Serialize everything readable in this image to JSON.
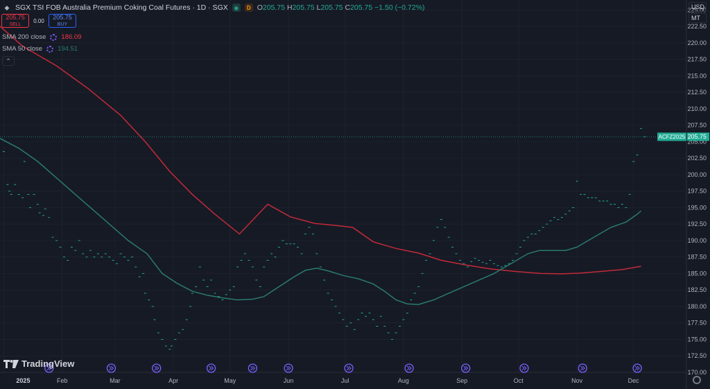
{
  "header": {
    "title": "SGX TSI FOB Australia Premium Coking Coal Futures · 1D · SGX",
    "open_label": "O",
    "open": "205.75",
    "high_label": "H",
    "high": "205.75",
    "low_label": "L",
    "low": "205.75",
    "close_label": "C",
    "close": "205.75",
    "change": "−1.50 (−0.72%)"
  },
  "trade": {
    "sell_price": "205.75",
    "sell_label": "SELL",
    "spread": "0.00",
    "buy_price": "205.75",
    "buy_label": "BUY"
  },
  "indicators": [
    {
      "label": "SMA 200 close",
      "value": "186.09",
      "color": "#f23645"
    },
    {
      "label": "SMA 50 close",
      "value": "194.51",
      "color": "#2b7a6f"
    }
  ],
  "axis": {
    "currency": "USD",
    "unit": "MT",
    "price_tag_symbol": "ACFZ2025",
    "price_tag_value": "205.75"
  },
  "logo": "TradingView",
  "colors": {
    "background": "#161a25",
    "sma200": "#c42a38",
    "sma50": "#2b7a6f",
    "price": "#22ab94",
    "event": "#7b61ff",
    "tag": "#22ab94"
  },
  "chart_data": {
    "type": "line",
    "ylim": [
      170,
      226.5
    ],
    "y_ticks": [
      "170.00",
      "172.50",
      "175.00",
      "177.50",
      "180.00",
      "182.50",
      "185.00",
      "187.50",
      "190.00",
      "192.50",
      "195.00",
      "197.50",
      "200.00",
      "202.50",
      "205.00",
      "207.50",
      "210.00",
      "212.50",
      "215.00",
      "217.50",
      "220.00",
      "222.50",
      "225.00"
    ],
    "x_labels": [
      {
        "text": "2025",
        "day": 0
      },
      {
        "text": "Feb",
        "day": 31
      },
      {
        "text": "Mar",
        "day": 59
      },
      {
        "text": "Apr",
        "day": 90
      },
      {
        "text": "May",
        "day": 120
      },
      {
        "text": "Jun",
        "day": 151
      },
      {
        "text": "Jul",
        "day": 181
      },
      {
        "text": "Aug",
        "day": 212
      },
      {
        "text": "Sep",
        "day": 243
      },
      {
        "text": "Oct",
        "day": 273
      },
      {
        "text": "Nov",
        "day": 304
      },
      {
        "text": "Dec",
        "day": 334
      }
    ],
    "x_range_days": [
      -2,
      342
    ],
    "last_price": 205.75,
    "series": [
      {
        "name": "SMA 200 close",
        "points": [
          [
            -2,
            222.5
          ],
          [
            10,
            219.5
          ],
          [
            28,
            216.5
          ],
          [
            45,
            213
          ],
          [
            62,
            209
          ],
          [
            75,
            205
          ],
          [
            88,
            200.5
          ],
          [
            100,
            197
          ],
          [
            112,
            194
          ],
          [
            125,
            191
          ],
          [
            140,
            195.5
          ],
          [
            152,
            193.6
          ],
          [
            165,
            192.6
          ],
          [
            176,
            192.3
          ],
          [
            185,
            192.0
          ],
          [
            196,
            189.8
          ],
          [
            208,
            188.8
          ],
          [
            220,
            188.1
          ],
          [
            232,
            187.0
          ],
          [
            245,
            186.3
          ],
          [
            258,
            185.7
          ],
          [
            272,
            185.3
          ],
          [
            285,
            185.0
          ],
          [
            296,
            184.95
          ],
          [
            305,
            185.05
          ],
          [
            316,
            185.3
          ],
          [
            328,
            185.6
          ],
          [
            338,
            186.1
          ]
        ]
      },
      {
        "name": "SMA 50 close",
        "points": [
          [
            -2,
            205.5
          ],
          [
            8,
            204
          ],
          [
            18,
            202
          ],
          [
            30,
            199
          ],
          [
            42,
            196
          ],
          [
            54,
            193
          ],
          [
            66,
            190
          ],
          [
            76,
            188
          ],
          [
            84,
            185
          ],
          [
            92,
            183.5
          ],
          [
            100,
            182.3
          ],
          [
            108,
            181.7
          ],
          [
            116,
            181.3
          ],
          [
            124,
            181.0
          ],
          [
            132,
            181.1
          ],
          [
            138,
            181.5
          ],
          [
            146,
            183.0
          ],
          [
            154,
            184.5
          ],
          [
            160,
            185.5
          ],
          [
            166,
            185.8
          ],
          [
            172,
            185.4
          ],
          [
            180,
            184.7
          ],
          [
            188,
            184.2
          ],
          [
            196,
            183.4
          ],
          [
            202,
            182.3
          ],
          [
            208,
            181.0
          ],
          [
            214,
            180.4
          ],
          [
            220,
            180.3
          ],
          [
            228,
            181.0
          ],
          [
            236,
            182.0
          ],
          [
            244,
            183.0
          ],
          [
            252,
            184.0
          ],
          [
            260,
            185.0
          ],
          [
            266,
            186.0
          ],
          [
            272,
            187.0
          ],
          [
            278,
            188.0
          ],
          [
            284,
            188.5
          ],
          [
            290,
            188.5
          ],
          [
            298,
            188.5
          ],
          [
            304,
            189.0
          ],
          [
            310,
            190.0
          ],
          [
            316,
            191.0
          ],
          [
            322,
            192.0
          ],
          [
            330,
            192.8
          ],
          [
            336,
            194.0
          ],
          [
            338,
            194.5
          ]
        ]
      },
      {
        "name": "Price",
        "points": [
          [
            0,
            203.5
          ],
          [
            2,
            198.5
          ],
          [
            3,
            197.5
          ],
          [
            4,
            197
          ],
          [
            6,
            198.5
          ],
          [
            8,
            197
          ],
          [
            10,
            196.5
          ],
          [
            11,
            202
          ],
          [
            13,
            197
          ],
          [
            14,
            195
          ],
          [
            16,
            197
          ],
          [
            18,
            195.5
          ],
          [
            19,
            194.2
          ],
          [
            21,
            193.8
          ],
          [
            22,
            194.8
          ],
          [
            24,
            193.5
          ],
          [
            26,
            190.5
          ],
          [
            28,
            190
          ],
          [
            30,
            189
          ],
          [
            32,
            187.5
          ],
          [
            34,
            187
          ],
          [
            36,
            189
          ],
          [
            38,
            188.5
          ],
          [
            40,
            190
          ],
          [
            42,
            188
          ],
          [
            44,
            187.5
          ],
          [
            46,
            188.5
          ],
          [
            48,
            187.5
          ],
          [
            50,
            188
          ],
          [
            52,
            187.5
          ],
          [
            54,
            188
          ],
          [
            56,
            187.5
          ],
          [
            58,
            187
          ],
          [
            60,
            186.5
          ],
          [
            62,
            188
          ],
          [
            64,
            187.5
          ],
          [
            66,
            187
          ],
          [
            68,
            187.5
          ],
          [
            70,
            186
          ],
          [
            72,
            184.5
          ],
          [
            74,
            185
          ],
          [
            75,
            182
          ],
          [
            77,
            181
          ],
          [
            79,
            180
          ],
          [
            80,
            178
          ],
          [
            82,
            176
          ],
          [
            84,
            175
          ],
          [
            86,
            174
          ],
          [
            88,
            173.5
          ],
          [
            89,
            174
          ],
          [
            91,
            175
          ],
          [
            93,
            176
          ],
          [
            95,
            176.5
          ],
          [
            97,
            178
          ],
          [
            99,
            180
          ],
          [
            100,
            182
          ],
          [
            102,
            183
          ],
          [
            104,
            186
          ],
          [
            106,
            184
          ],
          [
            108,
            183
          ],
          [
            110,
            184
          ],
          [
            112,
            182
          ],
          [
            114,
            181.5
          ],
          [
            116,
            181
          ],
          [
            118,
            181.8
          ],
          [
            120,
            182.5
          ],
          [
            122,
            183
          ],
          [
            124,
            186
          ],
          [
            126,
            187
          ],
          [
            128,
            188
          ],
          [
            130,
            187
          ],
          [
            132,
            186
          ],
          [
            134,
            184
          ],
          [
            136,
            183
          ],
          [
            138,
            186
          ],
          [
            140,
            187
          ],
          [
            142,
            188
          ],
          [
            144,
            187.5
          ],
          [
            146,
            189
          ],
          [
            148,
            190
          ],
          [
            150,
            189.5
          ],
          [
            152,
            189.5
          ],
          [
            154,
            189.5
          ],
          [
            156,
            189
          ],
          [
            158,
            188
          ],
          [
            160,
            191
          ],
          [
            162,
            192
          ],
          [
            164,
            191
          ],
          [
            166,
            188
          ],
          [
            168,
            186
          ],
          [
            170,
            184
          ],
          [
            172,
            182
          ],
          [
            174,
            181
          ],
          [
            176,
            180
          ],
          [
            178,
            179
          ],
          [
            180,
            178
          ],
          [
            182,
            177
          ],
          [
            184,
            177.5
          ],
          [
            186,
            176.5
          ],
          [
            188,
            178
          ],
          [
            190,
            179
          ],
          [
            192,
            178.5
          ],
          [
            194,
            179
          ],
          [
            196,
            178
          ],
          [
            198,
            177
          ],
          [
            200,
            178.5
          ],
          [
            202,
            177
          ],
          [
            204,
            176
          ],
          [
            206,
            175
          ],
          [
            208,
            176
          ],
          [
            210,
            177
          ],
          [
            212,
            178
          ],
          [
            214,
            179
          ],
          [
            216,
            181
          ],
          [
            218,
            182
          ],
          [
            220,
            183
          ],
          [
            222,
            185
          ],
          [
            224,
            187
          ],
          [
            226,
            188
          ],
          [
            228,
            190
          ],
          [
            230,
            192
          ],
          [
            232,
            193.2
          ],
          [
            234,
            192
          ],
          [
            236,
            190.5
          ],
          [
            238,
            189
          ],
          [
            240,
            188
          ],
          [
            242,
            187
          ],
          [
            244,
            186.5
          ],
          [
            246,
            186
          ],
          [
            248,
            186.8
          ],
          [
            250,
            187.3
          ],
          [
            252,
            187
          ],
          [
            254,
            186.7
          ],
          [
            256,
            186.5
          ],
          [
            258,
            187
          ],
          [
            260,
            186.5
          ],
          [
            262,
            186.2
          ],
          [
            264,
            186
          ],
          [
            266,
            186.2
          ],
          [
            268,
            186.5
          ],
          [
            270,
            187
          ],
          [
            272,
            188
          ],
          [
            274,
            189
          ],
          [
            276,
            190
          ],
          [
            278,
            190.5
          ],
          [
            280,
            191
          ],
          [
            282,
            191
          ],
          [
            284,
            191.5
          ],
          [
            286,
            192
          ],
          [
            288,
            192.5
          ],
          [
            290,
            193
          ],
          [
            292,
            193.5
          ],
          [
            294,
            193.2
          ],
          [
            296,
            193.5
          ],
          [
            298,
            194
          ],
          [
            300,
            194.5
          ],
          [
            302,
            195
          ],
          [
            304,
            199
          ],
          [
            306,
            197
          ],
          [
            308,
            197
          ],
          [
            310,
            196.5
          ],
          [
            312,
            196.5
          ],
          [
            314,
            196.5
          ],
          [
            316,
            196
          ],
          [
            318,
            196
          ],
          [
            320,
            196
          ],
          [
            322,
            195.5
          ],
          [
            324,
            195.5
          ],
          [
            326,
            195
          ],
          [
            328,
            195.5
          ],
          [
            330,
            195
          ],
          [
            332,
            197
          ],
          [
            334,
            202
          ],
          [
            336,
            203
          ],
          [
            338,
            207
          ],
          [
            340,
            205.75
          ]
        ]
      }
    ],
    "event_markers_days": [
      24,
      57,
      81,
      110,
      132,
      151,
      183,
      215,
      245,
      276,
      307,
      336
    ]
  }
}
